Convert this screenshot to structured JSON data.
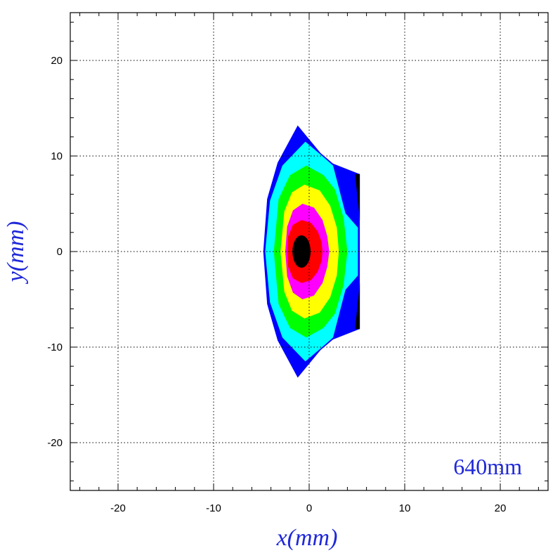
{
  "chart_data": {
    "type": "heatmap",
    "title": "",
    "xlabel": "x(mm)",
    "ylabel": "y(mm)",
    "annotation": "640mm",
    "xlim": [
      -25,
      25
    ],
    "ylim": [
      -25,
      25
    ],
    "xticks": [
      -20,
      -10,
      0,
      10,
      20
    ],
    "yticks": [
      -20,
      -10,
      0,
      10,
      20
    ],
    "grid": true,
    "levels": [
      {
        "level": 1,
        "color": "#0000ff",
        "polygon": [
          [
            -1.2,
            13.2
          ],
          [
            1.2,
            10.3
          ],
          [
            2.5,
            9.2
          ],
          [
            5.3,
            8.1
          ],
          [
            5.3,
            -8.1
          ],
          [
            2.5,
            -9.2
          ],
          [
            1.2,
            -10.3
          ],
          [
            -1.2,
            -13.2
          ],
          [
            -3.3,
            -9.3
          ],
          [
            -4.4,
            -5.5
          ],
          [
            -4.8,
            0
          ],
          [
            -4.4,
            5.5
          ],
          [
            -3.3,
            9.3
          ]
        ]
      },
      {
        "level": 2,
        "color": "#00ffff",
        "polygon": [
          [
            -0.4,
            11.5
          ],
          [
            1.6,
            9.8
          ],
          [
            2.5,
            9.0
          ],
          [
            3.8,
            4.0
          ],
          [
            5.1,
            2.5
          ],
          [
            5.1,
            -2.5
          ],
          [
            3.8,
            -4.0
          ],
          [
            2.5,
            -9.0
          ],
          [
            1.6,
            -9.8
          ],
          [
            -0.4,
            -11.5
          ],
          [
            -2.8,
            -9.0
          ],
          [
            -4.1,
            -5.3
          ],
          [
            -4.6,
            0
          ],
          [
            -4.1,
            5.3
          ],
          [
            -2.8,
            9.0
          ]
        ]
      },
      {
        "level": 3,
        "color": "#00ff00",
        "polygon": [
          [
            -0.3,
            9.0
          ],
          [
            1.5,
            8.0
          ],
          [
            2.7,
            6.5
          ],
          [
            3.6,
            3.5
          ],
          [
            4.0,
            0
          ],
          [
            3.6,
            -3.5
          ],
          [
            2.7,
            -6.5
          ],
          [
            1.5,
            -8.0
          ],
          [
            -0.3,
            -9.0
          ],
          [
            -2.0,
            -8.0
          ],
          [
            -3.2,
            -5.5
          ],
          [
            -3.7,
            0
          ],
          [
            -3.2,
            5.5
          ],
          [
            -2.0,
            8.0
          ]
        ]
      },
      {
        "level": 4,
        "color": "#ffff00",
        "polygon": [
          [
            -0.5,
            7.0
          ],
          [
            1.1,
            6.4
          ],
          [
            2.2,
            4.8
          ],
          [
            2.9,
            2.5
          ],
          [
            3.1,
            0
          ],
          [
            2.9,
            -2.5
          ],
          [
            2.2,
            -4.8
          ],
          [
            1.1,
            -6.4
          ],
          [
            -0.5,
            -7.0
          ],
          [
            -1.8,
            -6.2
          ],
          [
            -2.6,
            -4.2
          ],
          [
            -3.0,
            0
          ],
          [
            -2.6,
            4.2
          ],
          [
            -1.8,
            6.2
          ]
        ]
      },
      {
        "level": 5,
        "color": "#ff00ff",
        "polygon": [
          [
            -0.7,
            5.0
          ],
          [
            0.5,
            4.6
          ],
          [
            1.4,
            3.3
          ],
          [
            1.9,
            1.6
          ],
          [
            2.1,
            0
          ],
          [
            1.9,
            -1.6
          ],
          [
            1.4,
            -3.3
          ],
          [
            0.5,
            -4.6
          ],
          [
            -0.7,
            -5.0
          ],
          [
            -1.7,
            -4.3
          ],
          [
            -2.3,
            -2.6
          ],
          [
            -2.5,
            0
          ],
          [
            -2.3,
            2.6
          ],
          [
            -1.7,
            4.3
          ]
        ]
      },
      {
        "level": 6,
        "color": "#ff0000",
        "polygon": [
          [
            -0.8,
            3.3
          ],
          [
            0.2,
            3.0
          ],
          [
            0.9,
            2.1
          ],
          [
            1.3,
            1.0
          ],
          [
            1.4,
            0
          ],
          [
            1.3,
            -1.0
          ],
          [
            0.9,
            -2.1
          ],
          [
            0.2,
            -3.0
          ],
          [
            -0.8,
            -3.3
          ],
          [
            -1.7,
            -2.8
          ],
          [
            -2.2,
            -1.6
          ],
          [
            -2.3,
            0
          ],
          [
            -2.2,
            1.6
          ],
          [
            -1.7,
            2.8
          ]
        ]
      },
      {
        "level": 7,
        "color": "#000000",
        "ellipse": {
          "cx": -0.8,
          "cy": 0,
          "rx": 0.95,
          "ry": 1.7
        }
      },
      {
        "level": 8,
        "color": "#000000",
        "polygon": [
          [
            5.3,
            8.1
          ],
          [
            4.8,
            8.1
          ],
          [
            5.3,
            3.3
          ]
        ]
      },
      {
        "level": 8,
        "color": "#000000",
        "polygon": [
          [
            5.3,
            -8.1
          ],
          [
            4.8,
            -8.1
          ],
          [
            5.3,
            -3.3
          ]
        ]
      }
    ]
  }
}
